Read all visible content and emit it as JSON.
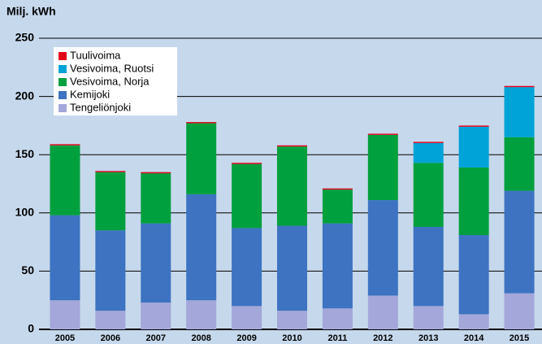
{
  "chart_data": {
    "type": "stacked_bar",
    "y_label": "Milj. kWh",
    "categories": [
      "2005",
      "2006",
      "2007",
      "2008",
      "2009",
      "2010",
      "2011",
      "2012",
      "2013",
      "2014",
      "2015"
    ],
    "series": [
      {
        "name": "Tengeliönjoki",
        "color": "#a3a7d9",
        "values": [
          25,
          16,
          23,
          25,
          20,
          16,
          18,
          29,
          20,
          13,
          31
        ]
      },
      {
        "name": "Kemijoki",
        "color": "#3d73c1",
        "values": [
          73,
          69,
          68,
          91,
          67,
          73,
          73,
          82,
          68,
          68,
          88
        ]
      },
      {
        "name": "Vesivoima, Norja",
        "color": "#00a03e",
        "values": [
          60,
          50,
          43,
          61,
          55,
          68,
          29,
          56,
          55,
          58,
          46
        ]
      },
      {
        "name": "Vesivoima, Ruotsi",
        "color": "#00a3d8",
        "values": [
          0,
          0,
          0,
          0,
          0,
          0,
          0,
          0,
          17,
          35,
          43
        ]
      },
      {
        "name": "Tuulivoima",
        "color": "#e2001a",
        "values": [
          1,
          1,
          1,
          1,
          1,
          1,
          1,
          1,
          1,
          1,
          1
        ]
      }
    ],
    "ylim": [
      0,
      250
    ],
    "yticks": [
      0,
      50,
      100,
      150,
      200,
      250
    ],
    "grid": true
  }
}
